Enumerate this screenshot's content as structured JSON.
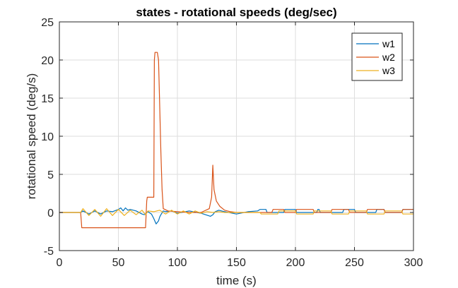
{
  "chart_data": {
    "type": "line",
    "title": "states - rotational speeds (deg/sec)",
    "xlabel": "time (s)",
    "ylabel": "rotational speed (deg/s)",
    "xlim": [
      0,
      300
    ],
    "ylim": [
      -5,
      25
    ],
    "xticks": [
      0,
      50,
      100,
      150,
      200,
      250,
      300
    ],
    "yticks": [
      -5,
      0,
      5,
      10,
      15,
      20,
      25
    ],
    "grid": true,
    "legend_position": "top-right",
    "series": [
      {
        "name": "w1",
        "color": "#0072BD",
        "x": [
          0,
          18,
          20,
          25,
          30,
          35,
          40,
          45,
          50,
          52,
          54,
          56,
          58,
          60,
          65,
          70,
          72,
          75,
          78,
          80,
          82,
          84,
          85,
          86,
          88,
          90,
          95,
          100,
          110,
          120,
          128,
          130,
          132,
          135,
          140,
          150,
          160,
          168,
          170,
          175,
          176,
          190,
          191,
          200,
          201,
          218,
          219,
          220,
          221,
          240,
          241,
          250,
          251,
          268,
          269,
          275,
          276,
          290,
          291,
          300
        ],
        "y": [
          0,
          0,
          0.2,
          -0.2,
          0.2,
          -0.2,
          0.2,
          0.1,
          0.4,
          0.6,
          0.2,
          0.6,
          0.3,
          0.4,
          0.2,
          -0.2,
          -0.3,
          0.1,
          -0.2,
          -0.8,
          -1.5,
          -1.1,
          -0.6,
          -0.3,
          0.2,
          0.1,
          0.2,
          -0.1,
          0.2,
          -0.1,
          -0.5,
          -0.3,
          0.1,
          0.3,
          0.1,
          -0.2,
          0.1,
          0.2,
          0.4,
          0.4,
          0,
          0,
          0.4,
          0.4,
          0,
          0,
          0.4,
          0.4,
          0,
          0,
          0.4,
          0.4,
          0,
          0,
          0.4,
          0.4,
          0,
          0,
          0.4,
          0.4
        ]
      },
      {
        "name": "w2",
        "color": "#D95319",
        "x": [
          0,
          18,
          19,
          70,
          73,
          74,
          74.5,
          80,
          80.5,
          81,
          83,
          84,
          86,
          87,
          88,
          92,
          100,
          110,
          120,
          127,
          129,
          130,
          131,
          133,
          136,
          140,
          145,
          150,
          155,
          160,
          165,
          170,
          175,
          180,
          181,
          190,
          191,
          200,
          201,
          215,
          216,
          230,
          231,
          245,
          246,
          260,
          261,
          275,
          276,
          290,
          291,
          300
        ],
        "y": [
          0,
          0,
          -2,
          -2,
          -2,
          1.5,
          2,
          2,
          20,
          21,
          21,
          20,
          8,
          3,
          0.5,
          0.2,
          0.1,
          0,
          0,
          0.5,
          2,
          6.2,
          3,
          1.5,
          0.8,
          0.3,
          0.1,
          0,
          0,
          0,
          0,
          0,
          0,
          0,
          0.4,
          0.4,
          0,
          0,
          0.4,
          0.4,
          0,
          0,
          0.4,
          0.4,
          0,
          0,
          0.4,
          0.4,
          0,
          0,
          0.4,
          0.4
        ]
      },
      {
        "name": "w3",
        "color": "#EDB120",
        "x": [
          0,
          18,
          20,
          25,
          30,
          35,
          40,
          45,
          50,
          55,
          60,
          65,
          70,
          73,
          75,
          80,
          85,
          90,
          95,
          100,
          105,
          110,
          115,
          120,
          125,
          130,
          135,
          140,
          150,
          160,
          170,
          171,
          185,
          186,
          200,
          201,
          215,
          216,
          230,
          231,
          245,
          246,
          260,
          261,
          275,
          276,
          290,
          291,
          300
        ],
        "y": [
          0,
          0,
          0.5,
          -0.4,
          0.4,
          -0.5,
          0.5,
          -0.4,
          0.4,
          -0.4,
          0.3,
          -0.3,
          0.3,
          -0.3,
          0.2,
          0.1,
          0.3,
          -0.2,
          0.3,
          -0.2,
          0.2,
          -0.2,
          0.2,
          -0.1,
          0.1,
          0,
          0.1,
          0,
          0,
          0,
          0,
          -0.2,
          -0.2,
          0.2,
          0.2,
          -0.2,
          -0.2,
          0.2,
          0.2,
          -0.2,
          -0.2,
          0.2,
          0.2,
          -0.2,
          -0.2,
          0.2,
          0.2,
          -0.2,
          -0.2
        ]
      }
    ]
  }
}
